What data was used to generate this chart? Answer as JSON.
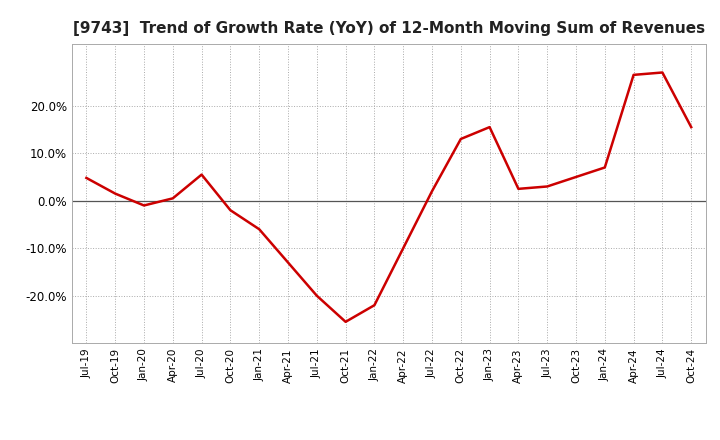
{
  "title": "[9743]  Trend of Growth Rate (YoY) of 12-Month Moving Sum of Revenues",
  "line_color": "#cc0000",
  "background_color": "#ffffff",
  "grid_color": "#aaaaaa",
  "zero_line_color": "#555555",
  "ylim": [
    -0.3,
    0.33
  ],
  "yticks": [
    -0.2,
    -0.1,
    0.0,
    0.1,
    0.2
  ],
  "x_labels": [
    "Jul-19",
    "Oct-19",
    "Jan-20",
    "Apr-20",
    "Jul-20",
    "Oct-20",
    "Jan-21",
    "Apr-21",
    "Jul-21",
    "Oct-21",
    "Jan-22",
    "Apr-22",
    "Jul-22",
    "Oct-22",
    "Jan-23",
    "Apr-23",
    "Jul-23",
    "Oct-23",
    "Jan-24",
    "Apr-24",
    "Jul-24",
    "Oct-24"
  ],
  "values": [
    0.048,
    0.015,
    -0.01,
    0.005,
    0.055,
    -0.02,
    -0.06,
    -0.13,
    -0.2,
    -0.255,
    -0.22,
    -0.1,
    0.02,
    0.13,
    0.155,
    0.025,
    0.03,
    0.05,
    0.07,
    0.265,
    0.27,
    0.155
  ],
  "title_fontsize": 11.0,
  "tick_fontsize": 7.5,
  "ytick_fontsize": 8.5,
  "line_width": 1.8
}
